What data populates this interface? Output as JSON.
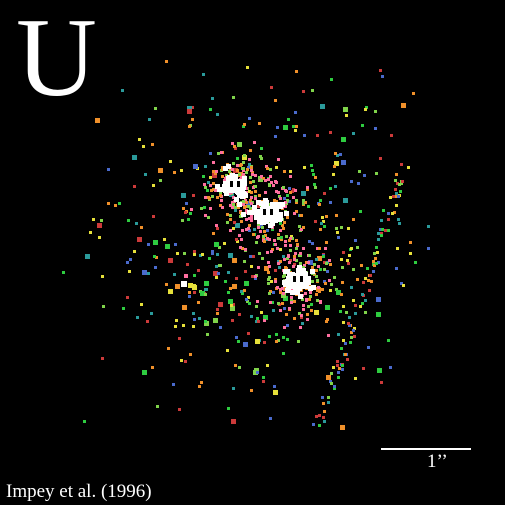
{
  "band_label": "U",
  "scale_bar": {
    "label": "1’’"
  },
  "credit": "Impey et al. (1996)",
  "colors": {
    "background": "#000000",
    "core": "#ffffff",
    "halo": "#ff6fa0",
    "speckle": [
      "#2ecc40",
      "#7fd34a",
      "#e6e03a",
      "#f0902a",
      "#2a9a9a",
      "#4a6acc",
      "#cc3a3a"
    ]
  },
  "quasar_images": [
    {
      "id": "A",
      "name": "bright-image-top-left"
    },
    {
      "id": "B",
      "name": "bright-image-center"
    },
    {
      "id": "C",
      "name": "bright-image-lower-right"
    },
    {
      "id": "D",
      "name": "faint-image-left"
    }
  ]
}
